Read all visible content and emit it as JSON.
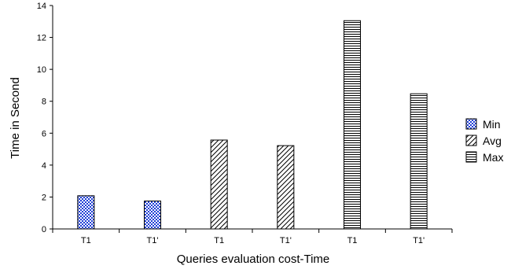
{
  "chart_data": {
    "type": "bar",
    "categories": [
      "T1",
      "T1'",
      "T1",
      "T1'",
      "T1",
      "T1'"
    ],
    "series": [
      {
        "name": "Min",
        "pattern": "blue-checker",
        "color": "#1f3fd6",
        "values": [
          2.08,
          1.75,
          null,
          null,
          null,
          null
        ]
      },
      {
        "name": "Avg",
        "pattern": "diagonal-hatch",
        "color": "#000000",
        "values": [
          null,
          null,
          5.57,
          5.22,
          null,
          null
        ]
      },
      {
        "name": "Max",
        "pattern": "horizontal-lines",
        "color": "#000000",
        "values": [
          null,
          null,
          null,
          null,
          13.05,
          8.47
        ]
      }
    ],
    "xlabel": "Queries evaluation cost-Time",
    "ylabel": "Time in Second",
    "ylim": [
      0,
      14
    ],
    "yticks": [
      0,
      2,
      4,
      6,
      8,
      10,
      12,
      14
    ],
    "grid": false,
    "legend": "right"
  }
}
